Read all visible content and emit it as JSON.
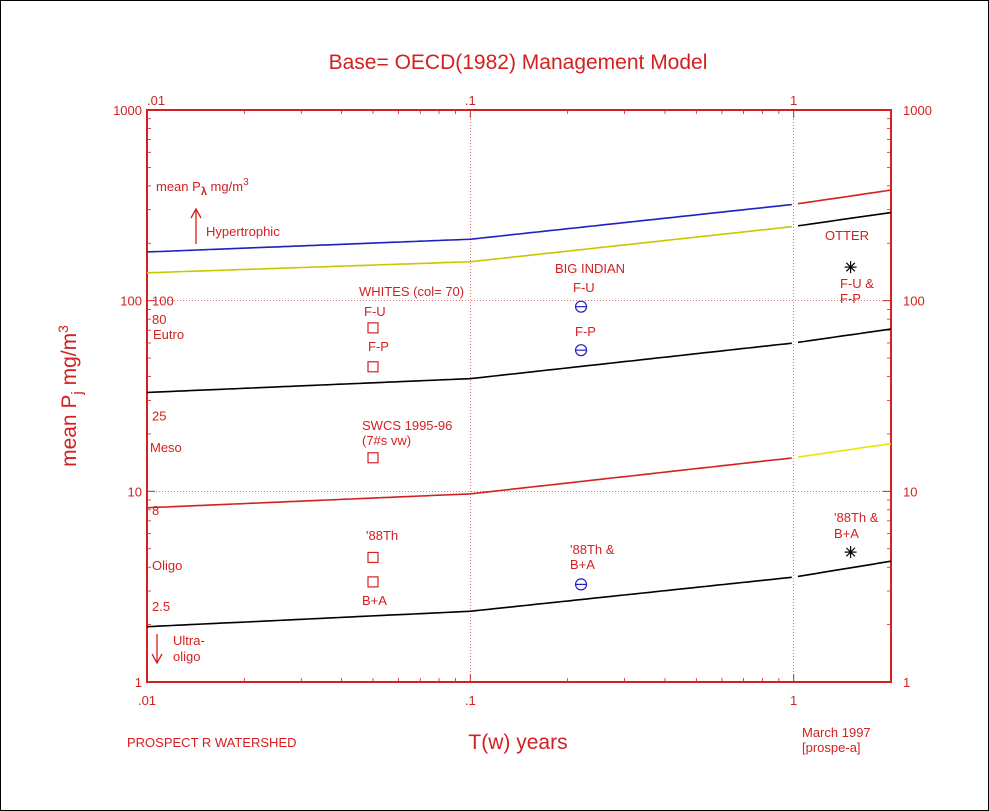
{
  "chart_data": {
    "type": "line",
    "title": "Base= OECD(1982) Management Model",
    "xlabel": "T(w) years",
    "ylabel_prefix": "mean P",
    "ylabel_sub": "j",
    "ylabel_suffix": " mg/m",
    "ylabel_sup": "3",
    "x_scale": "log",
    "y_scale": "log",
    "xlim": [
      0.01,
      2
    ],
    "ylim": [
      1,
      1000
    ],
    "x_ticks": [
      {
        "value": 0.01,
        "label": ".01"
      },
      {
        "value": 0.1,
        "label": ".1"
      },
      {
        "value": 1,
        "label": "1"
      }
    ],
    "y_ticks": [
      {
        "value": 1,
        "label": "1"
      },
      {
        "value": 10,
        "label": "10"
      },
      {
        "value": 100,
        "label": "100"
      },
      {
        "value": 1000,
        "label": "1000"
      }
    ],
    "grid": true,
    "series": [
      {
        "color": "#2020c0",
        "color2": "#d42020",
        "split_x": 1,
        "anchor_x": [
          0.01,
          0.1,
          1,
          2
        ],
        "anchor_y": [
          180,
          210,
          320,
          380
        ]
      },
      {
        "color": "#c8c800",
        "color2": "#000000",
        "split_x": 1,
        "anchor_x": [
          0.01,
          0.1,
          1,
          2
        ],
        "anchor_y": [
          140,
          160,
          245,
          290
        ]
      },
      {
        "color": "#000000",
        "color2": "#000000",
        "split_x": 1,
        "anchor_x": [
          0.01,
          0.1,
          1,
          2
        ],
        "anchor_y": [
          33,
          39,
          60,
          71
        ]
      },
      {
        "color": "#d42020",
        "color2": "#e8e800",
        "split_x": 1,
        "anchor_x": [
          0.01,
          0.1,
          1,
          2
        ],
        "anchor_y": [
          8.2,
          9.7,
          15,
          17.8
        ]
      },
      {
        "color": "#000000",
        "color2": "#000000",
        "split_x": 1,
        "anchor_x": [
          0.01,
          0.1,
          1,
          2
        ],
        "anchor_y": [
          1.95,
          2.35,
          3.55,
          4.3
        ]
      }
    ],
    "points": [
      {
        "name": "whites-f-u",
        "marker": "square",
        "x": 0.05,
        "y": 72
      },
      {
        "name": "whites-f-p",
        "marker": "square",
        "x": 0.05,
        "y": 45
      },
      {
        "name": "swcs",
        "marker": "square",
        "x": 0.05,
        "y": 15
      },
      {
        "name": "whites-88th",
        "marker": "square",
        "x": 0.05,
        "y": 4.5
      },
      {
        "name": "whites-ba",
        "marker": "square",
        "x": 0.05,
        "y": 3.35
      },
      {
        "name": "bigindian-f-u",
        "marker": "circle",
        "x": 0.22,
        "y": 93
      },
      {
        "name": "bigindian-f-p",
        "marker": "circle",
        "x": 0.22,
        "y": 55
      },
      {
        "name": "bigindian-88th",
        "marker": "circle",
        "x": 0.22,
        "y": 3.25
      },
      {
        "name": "otter-fu-fp",
        "marker": "star",
        "x": 1.5,
        "y": 150
      },
      {
        "name": "otter-88th",
        "marker": "star",
        "x": 1.5,
        "y": 4.8
      }
    ],
    "threshold_labels": [
      {
        "text": "100",
        "y": 100
      },
      {
        "text": "80",
        "y": 80
      },
      {
        "text": "25",
        "y": 25
      },
      {
        "text": "8",
        "y": 8
      },
      {
        "text": "2.5",
        "y": 2.5
      }
    ],
    "zones": {
      "header": "mean P",
      "header_sub": "λ",
      "header_suffix": " mg/m",
      "header_sup": "3",
      "hyper": "Hypertrophic",
      "eutro": "Eutro",
      "meso": "Meso",
      "oligo": "Oligo",
      "ultra1": "Ultra-",
      "ultra2": "oligo"
    },
    "annotations": {
      "whites": "WHITES (col= 70)",
      "whites_fu": "F-U",
      "whites_fp": "F-P",
      "swcs1": "SWCS 1995-96",
      "swcs2": "(7#s vw)",
      "whites_88th": "'88Th",
      "whites_ba": "B+A",
      "bigindian": "BIG INDIAN",
      "bigindian_fu": "F-U",
      "bigindian_fp": "F-P",
      "bigindian_88th1": "'88Th &",
      "bigindian_88th2": "B+A",
      "otter": "OTTER",
      "otter_fu1": "F-U &",
      "otter_fu2": "F-P",
      "otter_88th1": "'88Th &",
      "otter_88th2": "B+A"
    },
    "footer_left": "PROSPECT R WATERSHED",
    "footer_right1": "March 1997",
    "footer_right2": "[prospe-a]"
  }
}
